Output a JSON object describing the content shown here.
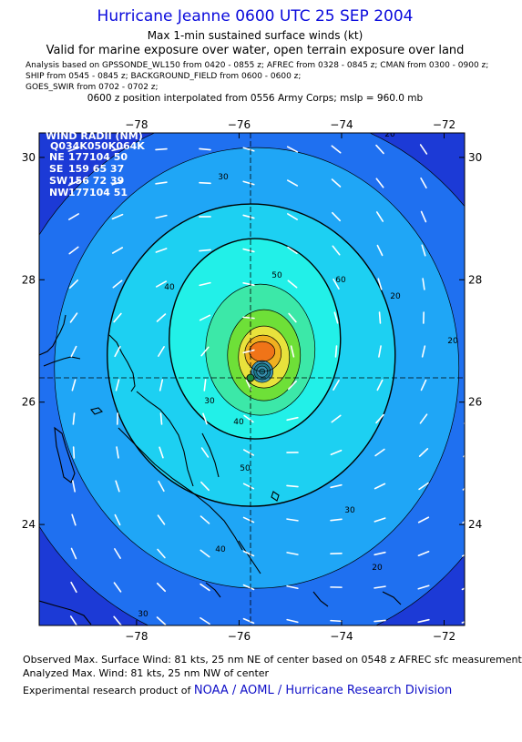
{
  "header": {
    "title": "Hurricane Jeanne 0600 UTC 25 SEP 2004",
    "subtitle": "Max 1-min sustained surface winds (kt)",
    "valid_line": "Valid for marine exposure over water, open terrain exposure over land",
    "analysis_lines": [
      "Analysis based on  GPSSONDE_WL150 from 0420 - 0855 z;  AFREC from 0328 - 0845 z;  CMAN from 0300 - 0900 z;",
      "SHIP from 0545 - 0845 z;  BACKGROUND_FIELD from 0600 - 0600 z;",
      "GOES_SWIR from 0702 - 0702 z;"
    ],
    "position_line": "0600 z position interpolated from 0556 Army Corps; mslp = 960.0 mb"
  },
  "map": {
    "x_ticks": [
      "−78",
      "−76",
      "−74",
      "−72"
    ],
    "y_ticks": [
      "30",
      "28",
      "26",
      "24"
    ],
    "lon_range": [
      -79.9,
      -71.6
    ],
    "lat_range": [
      22.35,
      30.4
    ],
    "center": {
      "lon": -75.55,
      "lat": 26.5
    },
    "contour_labels": [
      "20",
      "30",
      "40",
      "50",
      "60",
      "20",
      "20",
      "30",
      "40",
      "50",
      "30",
      "40",
      "20",
      "30"
    ],
    "colors": {
      "outer": "#1c3ad6",
      "c20": "#1f70f0",
      "c30": "#1fa6f6",
      "c40": "#1dd0f2",
      "c50": "#22f0e8",
      "c60": "#3ce8a8",
      "c70": "#6ee038",
      "c80": "#e8e23c",
      "c90": "#f0b020",
      "c100": "#f07418"
    }
  },
  "wind_radii": {
    "title": "WIND RADII (NM)",
    "header": "Q034K050K064K",
    "rows": [
      {
        "q": "NE",
        "v": "177104 50"
      },
      {
        "q": "SE",
        "v": "159 65 37"
      },
      {
        "q": "SW",
        "v": "156 72 39"
      },
      {
        "q": "NW",
        "v": "177104 51"
      }
    ]
  },
  "footer": {
    "observed": "Observed Max. Surface Wind: 81 kts, 25 nm NE of center based on 0548 z AFREC sfc measurement",
    "analyzed": "Analyzed Max. Wind: 81 kts, 25 nm NW of center",
    "credit_prefix": "Experimental research product of ",
    "credit_link": "NOAA / AOML / Hurricane Research Division"
  }
}
